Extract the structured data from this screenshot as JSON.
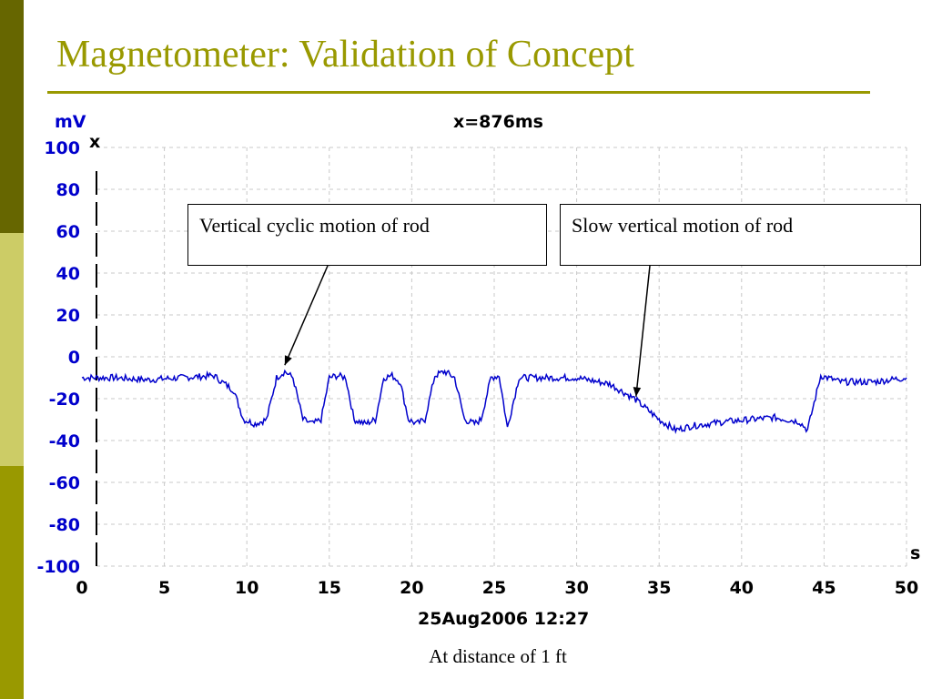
{
  "slide": {
    "title": "Magnetometer: Validation of Concept",
    "caption": "At distance of 1 ft",
    "colors": {
      "side_top": "#666600",
      "side_mid": "#cccc66",
      "side_bot": "#999900",
      "title": "#999900",
      "signal": "#0000cc"
    }
  },
  "annotations": [
    {
      "label": "Vertical cyclic motion of rod",
      "arrow_target": {
        "x_s": 12.3,
        "y_mV": -4
      }
    },
    {
      "label": "Slow vertical motion of rod",
      "arrow_target": {
        "x_s": 33.6,
        "y_mV": -19
      }
    }
  ],
  "chart_data": {
    "type": "line",
    "title": "x=876ms",
    "xlabel": "s",
    "ylabel": "mV",
    "channel_label": "x",
    "timestamp": "25Aug2006  12:27",
    "xlim": [
      0,
      50
    ],
    "ylim": [
      -100,
      100
    ],
    "x_ticks": [
      "0",
      "5",
      "10",
      "15",
      "20",
      "25",
      "30",
      "35",
      "40",
      "45",
      "50"
    ],
    "y_ticks": [
      "100",
      "80",
      "60",
      "40",
      "20",
      "0",
      "-20",
      "-40",
      "-60",
      "-80",
      "-100"
    ],
    "grid": true,
    "series": [
      {
        "x": [
          0,
          2,
          4,
          6,
          8,
          8.5,
          9.2,
          9.8,
          10.5,
          11.2,
          11.8,
          12.3,
          12.8,
          13.4,
          14.0,
          14.5,
          15.0,
          15.5,
          16.0,
          16.5,
          17.2,
          17.8,
          18.3,
          18.8,
          19.3,
          19.8,
          20.3,
          20.8,
          21.4,
          22.0,
          22.6,
          23.2,
          23.8,
          24.2,
          24.8,
          25.3,
          25.8,
          26.5,
          28,
          30,
          32,
          33.5,
          35,
          36,
          37,
          39,
          42,
          43.5,
          44,
          44.8,
          46,
          48,
          50
        ],
        "y": [
          -10,
          -10,
          -11,
          -10,
          -9,
          -12,
          -16,
          -30,
          -32,
          -30,
          -10,
          -7,
          -10,
          -30,
          -32,
          -30,
          -10,
          -9,
          -10,
          -30,
          -32,
          -30,
          -10,
          -9,
          -12,
          -30,
          -32,
          -30,
          -9,
          -7,
          -10,
          -30,
          -32,
          -30,
          -10,
          -9,
          -34,
          -10,
          -10,
          -10,
          -13,
          -20,
          -30,
          -35,
          -33,
          -31,
          -29,
          -31,
          -35,
          -9,
          -12,
          -12,
          -10
        ]
      }
    ]
  }
}
